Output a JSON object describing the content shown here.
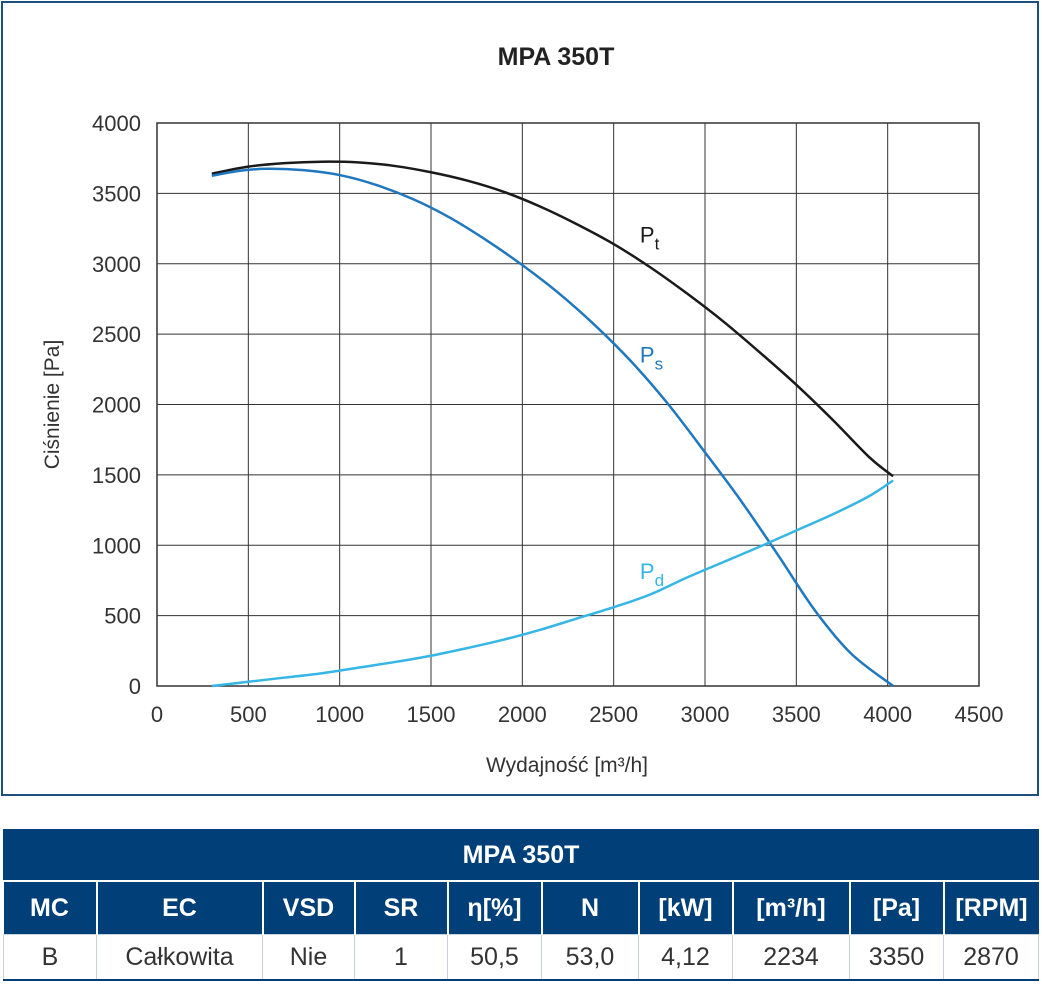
{
  "chart_data": {
    "type": "line",
    "title": "MPA 350T",
    "xlabel": "Wydajność [m³/h]",
    "ylabel": "Ciśnienie [Pa]",
    "xlim": [
      0,
      4500
    ],
    "ylim": [
      0,
      4000
    ],
    "xticks": [
      "0",
      "500",
      "1000",
      "1500",
      "2000",
      "2500",
      "3000",
      "3500",
      "4000",
      "4500"
    ],
    "yticks": [
      "0",
      "500",
      "1000",
      "1500",
      "2000",
      "2500",
      "3000",
      "3500",
      "4000"
    ],
    "grid": true,
    "series": [
      {
        "name": "Pt",
        "label_main": "P",
        "label_sub": "t",
        "color": "#1a1a1a",
        "label_at": [
          2600,
          3150
        ],
        "points": [
          [
            300,
            3640
          ],
          [
            500,
            3690
          ],
          [
            700,
            3715
          ],
          [
            900,
            3725
          ],
          [
            1100,
            3720
          ],
          [
            1300,
            3695
          ],
          [
            1500,
            3650
          ],
          [
            1700,
            3590
          ],
          [
            1900,
            3510
          ],
          [
            2100,
            3405
          ],
          [
            2300,
            3280
          ],
          [
            2500,
            3140
          ],
          [
            2700,
            2975
          ],
          [
            2900,
            2790
          ],
          [
            3100,
            2590
          ],
          [
            3300,
            2370
          ],
          [
            3500,
            2140
          ],
          [
            3700,
            1890
          ],
          [
            3900,
            1625
          ],
          [
            4030,
            1490
          ]
        ]
      },
      {
        "name": "Ps",
        "label_main": "P",
        "label_sub": "s",
        "color": "#1f78bf",
        "label_at": [
          2600,
          2300
        ],
        "points": [
          [
            300,
            3625
          ],
          [
            450,
            3660
          ],
          [
            600,
            3675
          ],
          [
            800,
            3665
          ],
          [
            1000,
            3630
          ],
          [
            1200,
            3560
          ],
          [
            1400,
            3460
          ],
          [
            1600,
            3330
          ],
          [
            1800,
            3170
          ],
          [
            2000,
            2990
          ],
          [
            2200,
            2790
          ],
          [
            2400,
            2560
          ],
          [
            2600,
            2300
          ],
          [
            2800,
            2000
          ],
          [
            3000,
            1660
          ],
          [
            3200,
            1310
          ],
          [
            3400,
            930
          ],
          [
            3600,
            540
          ],
          [
            3800,
            230
          ],
          [
            4030,
            0
          ]
        ]
      },
      {
        "name": "Pd",
        "label_main": "P",
        "label_sub": "d",
        "color": "#35b6e6",
        "label_at": [
          2600,
          760
        ],
        "points": [
          [
            300,
            0
          ],
          [
            500,
            30
          ],
          [
            700,
            60
          ],
          [
            900,
            90
          ],
          [
            1100,
            130
          ],
          [
            1300,
            170
          ],
          [
            1500,
            215
          ],
          [
            1700,
            270
          ],
          [
            1900,
            330
          ],
          [
            2100,
            400
          ],
          [
            2300,
            480
          ],
          [
            2500,
            560
          ],
          [
            2700,
            650
          ],
          [
            2900,
            770
          ],
          [
            3100,
            880
          ],
          [
            3300,
            990
          ],
          [
            3500,
            1105
          ],
          [
            3700,
            1220
          ],
          [
            3900,
            1350
          ],
          [
            4030,
            1460
          ]
        ]
      }
    ]
  },
  "table": {
    "title": "MPA 350T",
    "headers": [
      "MC",
      "EC",
      "VSD",
      "SR",
      "η[%]",
      "N",
      "[kW]",
      "[m³/h]",
      "[Pa]",
      "[RPM]"
    ],
    "values": [
      "B",
      "Całkowita",
      "Nie",
      "1",
      "50,5",
      "53,0",
      "4,12",
      "2234",
      "3350",
      "2870"
    ]
  }
}
